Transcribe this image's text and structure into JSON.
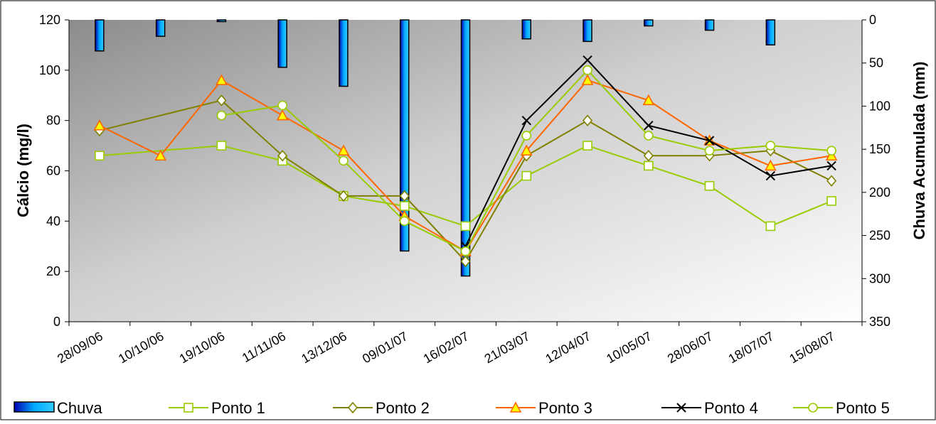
{
  "chart_data": {
    "type": "line",
    "categories": [
      "28/09/06",
      "10/10/06",
      "19/10/06",
      "11/11/06",
      "13/12/06",
      "09/01/07",
      "16/02/07",
      "21/03/07",
      "12/04/07",
      "10/05/07",
      "28/06/07",
      "18/07/07",
      "15/08/07"
    ],
    "ylabel": "Cálcio (mg/l)",
    "y2label": "Chuva Acumulada  (mm)",
    "ylim": [
      0,
      120
    ],
    "y2lim": [
      0,
      350
    ],
    "y2_inverted": true,
    "yticks": [
      "0",
      "20",
      "40",
      "60",
      "80",
      "100",
      "120"
    ],
    "y2ticks": [
      "0",
      "50",
      "100",
      "150",
      "200",
      "250",
      "300",
      "350"
    ],
    "grid": false,
    "legend_position": "bottom",
    "series": [
      {
        "name": "Chuva",
        "type": "bar",
        "axis": "right",
        "color": "#0000cc",
        "values": [
          36,
          19,
          2,
          55,
          77,
          268,
          297,
          22,
          25,
          7,
          12,
          29,
          null
        ]
      },
      {
        "name": "Ponto 1",
        "type": "line",
        "marker": "square",
        "color": "#99cc00",
        "values": [
          66,
          null,
          70,
          64,
          50,
          46,
          38,
          58,
          70,
          62,
          54,
          38,
          48
        ]
      },
      {
        "name": "Ponto 2",
        "type": "line",
        "marker": "diamond",
        "color": "#808000",
        "values": [
          76,
          null,
          88,
          66,
          50,
          50,
          24,
          66,
          80,
          66,
          66,
          68,
          56
        ]
      },
      {
        "name": "Ponto 3",
        "type": "line",
        "marker": "triangle",
        "color": "#ff6600",
        "values": [
          78,
          66,
          96,
          82,
          68,
          42,
          28,
          68,
          96,
          88,
          72,
          62,
          66
        ]
      },
      {
        "name": "Ponto 4",
        "type": "line",
        "marker": "x",
        "color": "#000000",
        "values": [
          null,
          null,
          null,
          null,
          null,
          null,
          30,
          80,
          104,
          78,
          72,
          58,
          62
        ]
      },
      {
        "name": "Ponto 5",
        "type": "line",
        "marker": "circle",
        "color": "#99cc00",
        "values": [
          null,
          null,
          82,
          86,
          64,
          40,
          28,
          74,
          100,
          74,
          68,
          70,
          68
        ]
      }
    ]
  }
}
